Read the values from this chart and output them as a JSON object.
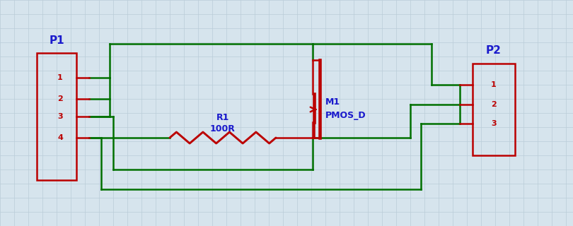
{
  "bg_color": "#d6e4ed",
  "grid_color": "#bacdd8",
  "wire_color": "#007000",
  "component_color": "#bb0000",
  "label_color": "#1a1acc",
  "wire_lw": 1.8,
  "comp_lw": 1.8,
  "figsize": [
    8.1,
    3.2
  ],
  "dpi": 100,
  "P1_label": "P1",
  "P2_label": "P2",
  "R1_label": "R1",
  "R1_sublabel": "100R",
  "M1_label": "M1",
  "M1_sublabel": "PMOS_D"
}
